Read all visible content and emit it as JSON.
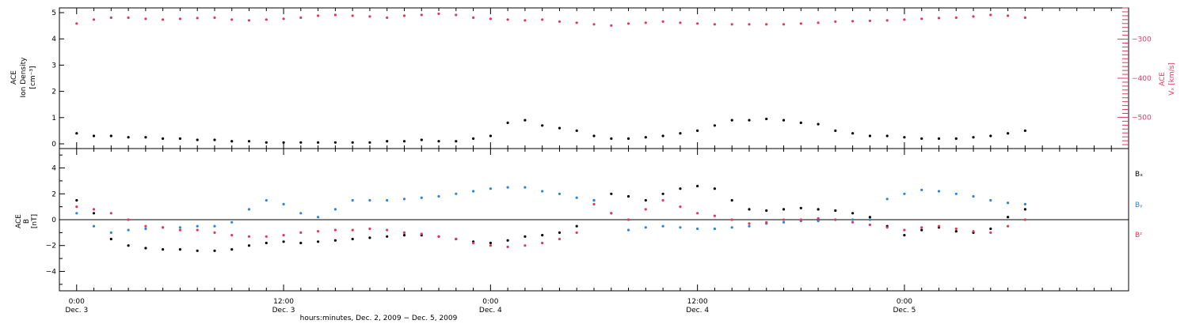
{
  "chart_data": [
    {
      "type": "scatter",
      "panel": "top",
      "ylabel_lines": [
        "ACE",
        "Ion Density",
        "[cm⁻³]"
      ],
      "ylim": [
        0,
        5
      ],
      "yticks": [
        0,
        1,
        2,
        3,
        4,
        5
      ],
      "y2label_lines": [
        "ACE",
        "Vₓ [km/s]"
      ],
      "y2ticks": [
        -300,
        -400,
        -500
      ],
      "y2lim": [
        -580,
        -220
      ],
      "series": [
        {
          "color": "#000000",
          "axis": "left",
          "x": [
            0,
            2,
            4,
            6,
            8,
            10,
            12,
            14,
            16,
            18,
            20,
            22,
            24,
            26,
            28,
            30,
            32,
            34,
            36,
            38,
            40,
            42,
            44,
            46,
            48,
            50,
            52,
            54,
            56,
            58,
            60,
            62,
            64,
            66,
            68,
            70,
            72,
            74,
            76,
            78,
            80,
            82,
            84,
            86,
            88,
            90,
            92,
            94,
            96,
            98,
            100,
            102,
            104,
            106,
            108,
            110
          ],
          "values": [
            0.4,
            0.3,
            0.3,
            0.25,
            0.25,
            0.2,
            0.2,
            0.15,
            0.15,
            0.1,
            0.1,
            0.05,
            0.05,
            0.05,
            0.05,
            0.05,
            0.05,
            0.05,
            0.1,
            0.1,
            0.15,
            0.1,
            0.1,
            0.2,
            0.3,
            0.8,
            0.9,
            0.7,
            0.6,
            0.5,
            0.3,
            0.2,
            0.2,
            0.25,
            0.3,
            0.4,
            0.5,
            0.7,
            0.9,
            0.9,
            0.95,
            0.9,
            0.8,
            0.75,
            0.5,
            0.4,
            0.3,
            0.3,
            0.25,
            0.2,
            0.2,
            0.2,
            0.25,
            0.3,
            0.4,
            0.5
          ]
        },
        {
          "color": "#e0395f",
          "axis": "right",
          "x": [
            0,
            2,
            4,
            6,
            8,
            10,
            12,
            14,
            16,
            18,
            20,
            22,
            24,
            26,
            28,
            30,
            32,
            34,
            36,
            38,
            40,
            42,
            44,
            46,
            48,
            50,
            52,
            54,
            56,
            58,
            60,
            62,
            64,
            66,
            68,
            70,
            72,
            74,
            76,
            78,
            80,
            82,
            84,
            86,
            88,
            90,
            92,
            94,
            96,
            98,
            100,
            102,
            104,
            106,
            108,
            110
          ],
          "values": [
            -260,
            -250,
            -245,
            -245,
            -248,
            -250,
            -248,
            -246,
            -245,
            -250,
            -252,
            -250,
            -248,
            -245,
            -240,
            -238,
            -240,
            -242,
            -245,
            -240,
            -238,
            -235,
            -238,
            -245,
            -248,
            -250,
            -252,
            -250,
            -255,
            -258,
            -262,
            -265,
            -260,
            -258,
            -255,
            -258,
            -260,
            -262,
            -262,
            -262,
            -262,
            -262,
            -260,
            -258,
            -255,
            -254,
            -253,
            -252,
            -250,
            -248,
            -246,
            -245,
            -242,
            -238,
            -240,
            -245
          ]
        }
      ]
    },
    {
      "type": "scatter",
      "panel": "bottom",
      "ylabel_lines": [
        "ACE",
        "B",
        "[nT]"
      ],
      "ylim": [
        -5.5,
        5.5
      ],
      "yticks": [
        -4,
        -2,
        0,
        2,
        4
      ],
      "series": [
        {
          "name": "Bₓ",
          "color": "#000000",
          "x": [
            0,
            2,
            4,
            6,
            8,
            10,
            12,
            14,
            16,
            18,
            20,
            22,
            24,
            26,
            28,
            30,
            32,
            34,
            36,
            38,
            40,
            42,
            44,
            46,
            48,
            50,
            52,
            54,
            56,
            58,
            60,
            62,
            64,
            66,
            68,
            70,
            72,
            74,
            76,
            78,
            80,
            82,
            84,
            86,
            88,
            90,
            92,
            94,
            96,
            98,
            100,
            102,
            104,
            106,
            108,
            110
          ],
          "values": [
            1.5,
            0.5,
            -1.5,
            -2.0,
            -2.2,
            -2.3,
            -2.3,
            -2.4,
            -2.4,
            -2.3,
            -2.0,
            -1.8,
            -1.7,
            -1.8,
            -1.7,
            -1.6,
            -1.5,
            -1.4,
            -1.3,
            -1.2,
            -1.2,
            -1.3,
            -1.5,
            -1.7,
            -1.8,
            -1.6,
            -1.3,
            -1.2,
            -1.0,
            -0.5,
            1.5,
            2.0,
            1.8,
            1.5,
            2.0,
            2.4,
            2.6,
            2.4,
            1.5,
            0.8,
            0.7,
            0.8,
            0.9,
            0.8,
            0.7,
            0.5,
            0.2,
            -0.5,
            -1.2,
            -0.8,
            -0.6,
            -0.9,
            -1.0,
            -0.7,
            0.2,
            0.8
          ]
        },
        {
          "name": "Bᵧ",
          "color": "#2a86d8",
          "x": [
            0,
            2,
            4,
            6,
            8,
            10,
            12,
            14,
            16,
            18,
            20,
            22,
            24,
            26,
            28,
            30,
            32,
            34,
            36,
            38,
            40,
            42,
            44,
            46,
            48,
            50,
            52,
            54,
            56,
            58,
            60,
            62,
            64,
            66,
            68,
            70,
            72,
            74,
            76,
            78,
            80,
            82,
            84,
            86,
            88,
            90,
            92,
            94,
            96,
            98,
            100,
            102,
            104,
            106,
            108,
            110
          ],
          "values": [
            0.5,
            -0.5,
            -1.0,
            -0.8,
            -0.7,
            -0.6,
            -0.6,
            -0.5,
            -0.5,
            -0.2,
            0.8,
            1.5,
            1.2,
            0.5,
            0.2,
            0.8,
            1.5,
            1.5,
            1.5,
            1.6,
            1.7,
            1.8,
            2.0,
            2.2,
            2.4,
            2.5,
            2.5,
            2.2,
            2.0,
            1.7,
            1.5,
            0.5,
            -0.8,
            -0.6,
            -0.5,
            -0.6,
            -0.7,
            -0.7,
            -0.6,
            -0.5,
            -0.3,
            -0.2,
            -0.1,
            -0.1,
            0.0,
            0.0,
            0.0,
            1.6,
            2.0,
            2.3,
            2.2,
            2.0,
            1.8,
            1.5,
            1.3,
            1.2
          ]
        },
        {
          "name": "Bᶻ",
          "color": "#e0395f",
          "x": [
            0,
            2,
            4,
            6,
            8,
            10,
            12,
            14,
            16,
            18,
            20,
            22,
            24,
            26,
            28,
            30,
            32,
            34,
            36,
            38,
            40,
            42,
            44,
            46,
            48,
            50,
            52,
            54,
            56,
            58,
            60,
            62,
            64,
            66,
            68,
            70,
            72,
            74,
            76,
            78,
            80,
            82,
            84,
            86,
            88,
            90,
            92,
            94,
            96,
            98,
            100,
            102,
            104,
            106,
            108,
            110
          ],
          "values": [
            1.0,
            0.8,
            0.5,
            0.0,
            -0.5,
            -0.6,
            -0.8,
            -0.8,
            -1.0,
            -1.2,
            -1.3,
            -1.3,
            -1.2,
            -1.0,
            -0.9,
            -0.8,
            -0.8,
            -0.7,
            -0.8,
            -1.0,
            -1.1,
            -1.3,
            -1.5,
            -1.8,
            -2.0,
            -2.1,
            -2.0,
            -1.8,
            -1.5,
            -1.0,
            1.2,
            0.5,
            0.0,
            0.8,
            1.5,
            1.0,
            0.5,
            0.3,
            0.0,
            -0.3,
            -0.2,
            0.0,
            0.0,
            0.1,
            0.0,
            -0.2,
            -0.4,
            -0.6,
            -0.8,
            -0.6,
            -0.5,
            -0.7,
            -0.9,
            -1.0,
            -0.5,
            0.0
          ]
        }
      ]
    }
  ],
  "x_axis": {
    "range_hours": [
      -2,
      122
    ],
    "tick_labels": [
      {
        "h": 0,
        "time": "0:00",
        "date": "Dec. 3"
      },
      {
        "h": 24,
        "time": "12:00",
        "date": "Dec. 3"
      },
      {
        "h": 48,
        "time": "0:00",
        "date": "Dec. 4"
      },
      {
        "h": 72,
        "time": "12:00",
        "date": "Dec. 4"
      },
      {
        "h": 96,
        "time": "0:00",
        "date": "Dec. 5"
      }
    ],
    "title": "hours:minutes, Dec.  2, 2009 − Dec.  5, 2009"
  }
}
